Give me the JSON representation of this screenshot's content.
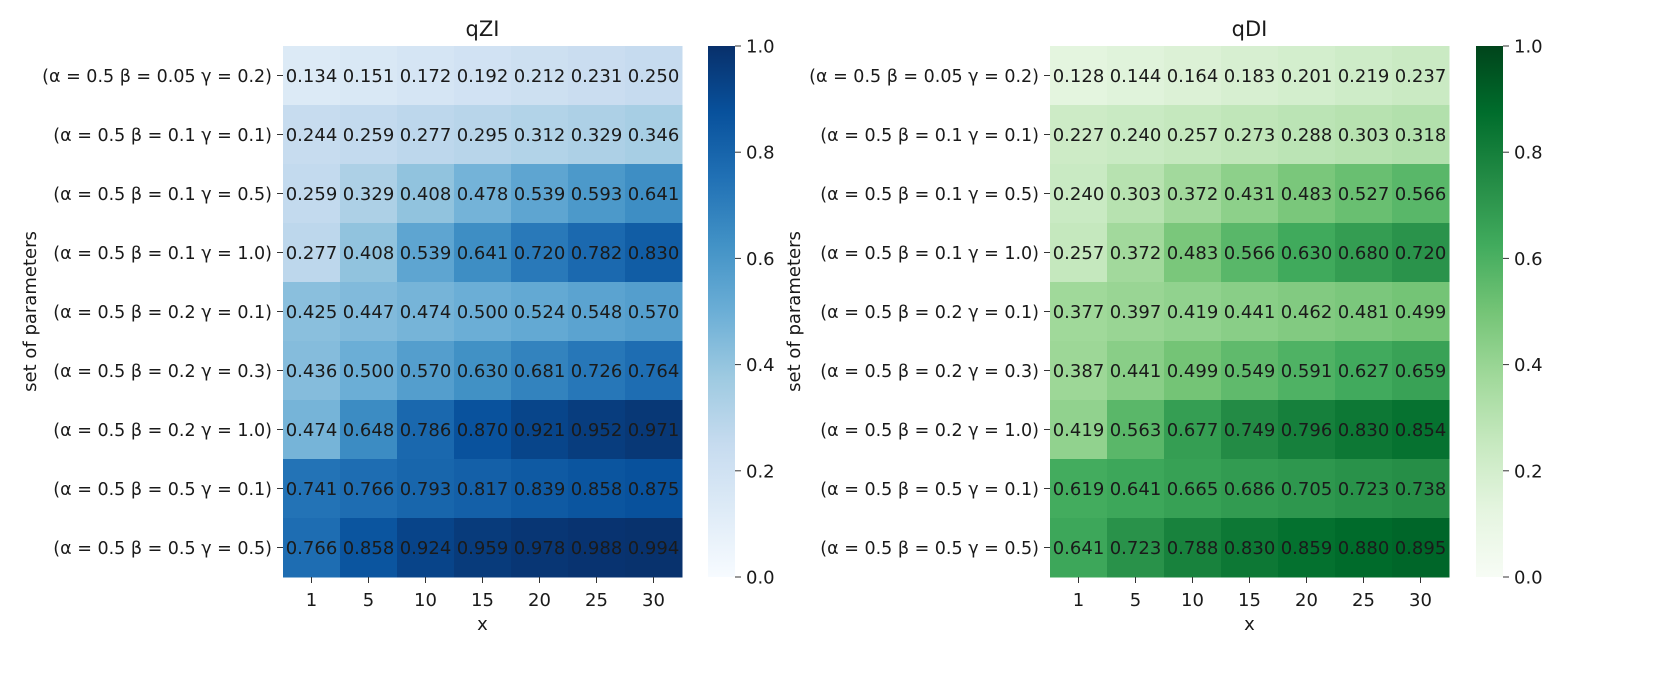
{
  "chart_data": [
    {
      "type": "heatmap",
      "title": "qZI",
      "xlabel": "x",
      "ylabel": "set of parameters",
      "colormap": "Blues",
      "vmin": 0.0,
      "vmax": 1.0,
      "colorbar_ticks": [
        "0.0",
        "0.2",
        "0.4",
        "0.6",
        "0.8",
        "1.0"
      ],
      "x": [
        "1",
        "5",
        "10",
        "15",
        "20",
        "25",
        "30"
      ],
      "y": [
        "(α = 0.5 β = 0.05 γ = 0.2)",
        "(α = 0.5 β = 0.1 γ = 0.1)",
        "(α = 0.5 β = 0.1 γ = 0.5)",
        "(α = 0.5 β = 0.1 γ = 1.0)",
        "(α = 0.5 β = 0.2 γ = 0.1)",
        "(α = 0.5 β = 0.2 γ = 0.3)",
        "(α = 0.5 β = 0.2 γ = 1.0)",
        "(α = 0.5 β = 0.5 γ = 0.1)",
        "(α = 0.5 β = 0.5 γ = 0.5)"
      ],
      "values": [
        [
          "0.134",
          "0.151",
          "0.172",
          "0.192",
          "0.212",
          "0.231",
          "0.250"
        ],
        [
          "0.244",
          "0.259",
          "0.277",
          "0.295",
          "0.312",
          "0.329",
          "0.346"
        ],
        [
          "0.259",
          "0.329",
          "0.408",
          "0.478",
          "0.539",
          "0.593",
          "0.641"
        ],
        [
          "0.277",
          "0.408",
          "0.539",
          "0.641",
          "0.720",
          "0.782",
          "0.830"
        ],
        [
          "0.425",
          "0.447",
          "0.474",
          "0.500",
          "0.524",
          "0.548",
          "0.570"
        ],
        [
          "0.436",
          "0.500",
          "0.570",
          "0.630",
          "0.681",
          "0.726",
          "0.764"
        ],
        [
          "0.474",
          "0.648",
          "0.786",
          "0.870",
          "0.921",
          "0.952",
          "0.971"
        ],
        [
          "0.741",
          "0.766",
          "0.793",
          "0.817",
          "0.839",
          "0.858",
          "0.875"
        ],
        [
          "0.766",
          "0.858",
          "0.924",
          "0.959",
          "0.978",
          "0.988",
          "0.994"
        ]
      ]
    },
    {
      "type": "heatmap",
      "title": "qDI",
      "xlabel": "x",
      "ylabel": "set of parameters",
      "colormap": "Greens",
      "vmin": 0.0,
      "vmax": 1.0,
      "colorbar_ticks": [
        "0.0",
        "0.2",
        "0.4",
        "0.6",
        "0.8",
        "1.0"
      ],
      "x": [
        "1",
        "5",
        "10",
        "15",
        "20",
        "25",
        "30"
      ],
      "y": [
        "(α = 0.5 β = 0.05 γ = 0.2)",
        "(α = 0.5 β = 0.1 γ = 0.1)",
        "(α = 0.5 β = 0.1 γ = 0.5)",
        "(α = 0.5 β = 0.1 γ = 1.0)",
        "(α = 0.5 β = 0.2 γ = 0.1)",
        "(α = 0.5 β = 0.2 γ = 0.3)",
        "(α = 0.5 β = 0.2 γ = 1.0)",
        "(α = 0.5 β = 0.5 γ = 0.1)",
        "(α = 0.5 β = 0.5 γ = 0.5)"
      ],
      "values": [
        [
          "0.128",
          "0.144",
          "0.164",
          "0.183",
          "0.201",
          "0.219",
          "0.237"
        ],
        [
          "0.227",
          "0.240",
          "0.257",
          "0.273",
          "0.288",
          "0.303",
          "0.318"
        ],
        [
          "0.240",
          "0.303",
          "0.372",
          "0.431",
          "0.483",
          "0.527",
          "0.566"
        ],
        [
          "0.257",
          "0.372",
          "0.483",
          "0.566",
          "0.630",
          "0.680",
          "0.720"
        ],
        [
          "0.377",
          "0.397",
          "0.419",
          "0.441",
          "0.462",
          "0.481",
          "0.499"
        ],
        [
          "0.387",
          "0.441",
          "0.499",
          "0.549",
          "0.591",
          "0.627",
          "0.659"
        ],
        [
          "0.419",
          "0.563",
          "0.677",
          "0.749",
          "0.796",
          "0.830",
          "0.854"
        ],
        [
          "0.619",
          "0.641",
          "0.665",
          "0.686",
          "0.705",
          "0.723",
          "0.738"
        ],
        [
          "0.641",
          "0.723",
          "0.788",
          "0.830",
          "0.859",
          "0.880",
          "0.895"
        ]
      ]
    }
  ]
}
